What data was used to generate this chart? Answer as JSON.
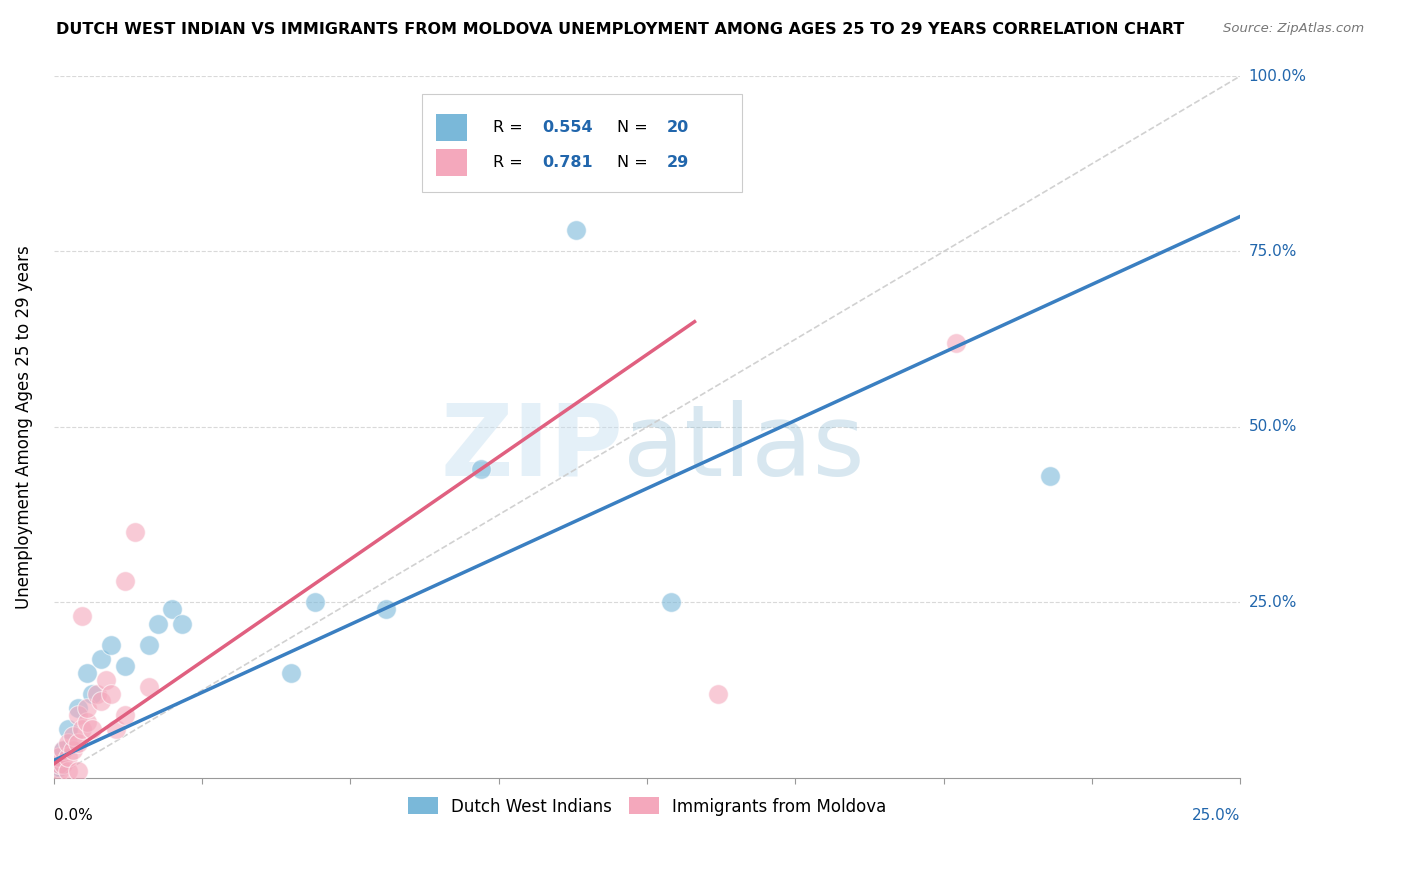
{
  "title": "DUTCH WEST INDIAN VS IMMIGRANTS FROM MOLDOVA UNEMPLOYMENT AMONG AGES 25 TO 29 YEARS CORRELATION CHART",
  "source": "Source: ZipAtlas.com",
  "ylabel": "Unemployment Among Ages 25 to 29 years",
  "xlim": [
    0,
    0.25
  ],
  "ylim": [
    0,
    1.0
  ],
  "ytick_labels": [
    "25.0%",
    "50.0%",
    "75.0%",
    "100.0%"
  ],
  "ytick_values": [
    0.25,
    0.5,
    0.75,
    1.0
  ],
  "legend_text_color": "#2166ac",
  "legend_label_blue": "Dutch West Indians",
  "legend_label_pink": "Immigrants from Moldova",
  "blue_color": "#7ab8d9",
  "pink_color": "#f4a8bc",
  "blue_line_color": "#3a7fc1",
  "pink_line_color": "#e06080",
  "diag_color": "#cccccc",
  "watermark_zip_color": "#c5dff0",
  "watermark_atlas_color": "#90bdd6",
  "blue_scatter_x": [
    0.001,
    0.002,
    0.003,
    0.005,
    0.007,
    0.008,
    0.01,
    0.012,
    0.015,
    0.02,
    0.022,
    0.025,
    0.027,
    0.05,
    0.055,
    0.07,
    0.09,
    0.11,
    0.13,
    0.21
  ],
  "blue_scatter_y": [
    0.015,
    0.04,
    0.07,
    0.1,
    0.15,
    0.12,
    0.17,
    0.19,
    0.16,
    0.19,
    0.22,
    0.24,
    0.22,
    0.15,
    0.25,
    0.24,
    0.44,
    0.78,
    0.25,
    0.43
  ],
  "pink_scatter_x": [
    0.001,
    0.001,
    0.001,
    0.002,
    0.002,
    0.003,
    0.003,
    0.003,
    0.004,
    0.004,
    0.005,
    0.005,
    0.005,
    0.006,
    0.006,
    0.007,
    0.007,
    0.008,
    0.009,
    0.01,
    0.011,
    0.012,
    0.013,
    0.015,
    0.015,
    0.017,
    0.02,
    0.14,
    0.19
  ],
  "pink_scatter_y": [
    0.01,
    0.02,
    0.03,
    0.02,
    0.04,
    0.01,
    0.03,
    0.05,
    0.04,
    0.06,
    0.01,
    0.05,
    0.09,
    0.07,
    0.23,
    0.08,
    0.1,
    0.07,
    0.12,
    0.11,
    0.14,
    0.12,
    0.07,
    0.09,
    0.28,
    0.35,
    0.13,
    0.12,
    0.62
  ],
  "blue_line_x": [
    0.0,
    0.25
  ],
  "blue_line_y": [
    0.025,
    0.8
  ],
  "pink_line_x": [
    0.0,
    0.135
  ],
  "pink_line_y": [
    0.02,
    0.65
  ],
  "diag_line_x": [
    0.0,
    0.25
  ],
  "diag_line_y": [
    0.0,
    1.0
  ]
}
